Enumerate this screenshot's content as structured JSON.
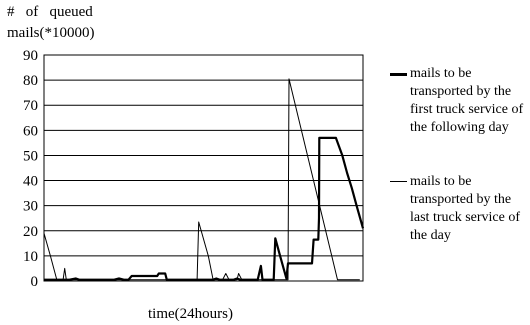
{
  "chart_data": {
    "type": "line",
    "ylabel_lines": [
      "#   of   queued",
      "mails(*10000)"
    ],
    "xlabel": "time(24hours)",
    "ylim": [
      0,
      90
    ],
    "yticks": [
      "90",
      "80",
      "70",
      "60",
      "50",
      "40",
      "30",
      "20",
      "10",
      "0"
    ],
    "xlim": [
      0,
      1
    ],
    "grid": true,
    "legend_position": "right",
    "series": [
      {
        "name": "mails to be transported by the first truck service of the following day",
        "style": "thick",
        "color": "#000000",
        "points": [
          [
            0.0,
            0.5
          ],
          [
            0.03,
            0.5
          ],
          [
            0.04,
            0.5
          ],
          [
            0.08,
            0.5
          ],
          [
            0.1,
            1
          ],
          [
            0.11,
            0.5
          ],
          [
            0.22,
            0.5
          ],
          [
            0.235,
            1
          ],
          [
            0.25,
            0.5
          ],
          [
            0.265,
            0.5
          ],
          [
            0.275,
            2
          ],
          [
            0.355,
            2
          ],
          [
            0.36,
            3
          ],
          [
            0.38,
            3
          ],
          [
            0.385,
            0.5
          ],
          [
            0.53,
            0.5
          ],
          [
            0.54,
            1
          ],
          [
            0.55,
            0.5
          ],
          [
            0.595,
            0.5
          ],
          [
            0.605,
            1
          ],
          [
            0.615,
            0.5
          ],
          [
            0.67,
            0.5
          ],
          [
            0.68,
            6
          ],
          [
            0.685,
            0.5
          ],
          [
            0.72,
            0.5
          ],
          [
            0.725,
            17
          ],
          [
            0.74,
            10
          ],
          [
            0.76,
            1
          ],
          [
            0.765,
            7
          ],
          [
            0.84,
            7
          ],
          [
            0.845,
            16.5
          ],
          [
            0.86,
            16.5
          ],
          [
            0.862,
            25
          ],
          [
            0.863,
            57
          ],
          [
            0.915,
            57
          ],
          [
            0.935,
            50
          ],
          [
            0.95,
            43
          ],
          [
            0.965,
            37
          ],
          [
            0.98,
            30
          ],
          [
            1.0,
            21
          ]
        ]
      },
      {
        "name": "mails to be transported by the last truck service of the day",
        "style": "thin",
        "color": "#000000",
        "points": [
          [
            0.0,
            19
          ],
          [
            0.02,
            10
          ],
          [
            0.04,
            0.5
          ],
          [
            0.06,
            0.5
          ],
          [
            0.065,
            5
          ],
          [
            0.07,
            0.5
          ],
          [
            0.48,
            0.5
          ],
          [
            0.485,
            23.5
          ],
          [
            0.515,
            10
          ],
          [
            0.53,
            0.5
          ],
          [
            0.56,
            0.5
          ],
          [
            0.57,
            3
          ],
          [
            0.58,
            0.5
          ],
          [
            0.605,
            0.5
          ],
          [
            0.61,
            3
          ],
          [
            0.62,
            0.5
          ],
          [
            0.765,
            0.5
          ],
          [
            0.768,
            80.5
          ],
          [
            0.92,
            0.5
          ],
          [
            0.99,
            0.5
          ]
        ]
      }
    ]
  }
}
